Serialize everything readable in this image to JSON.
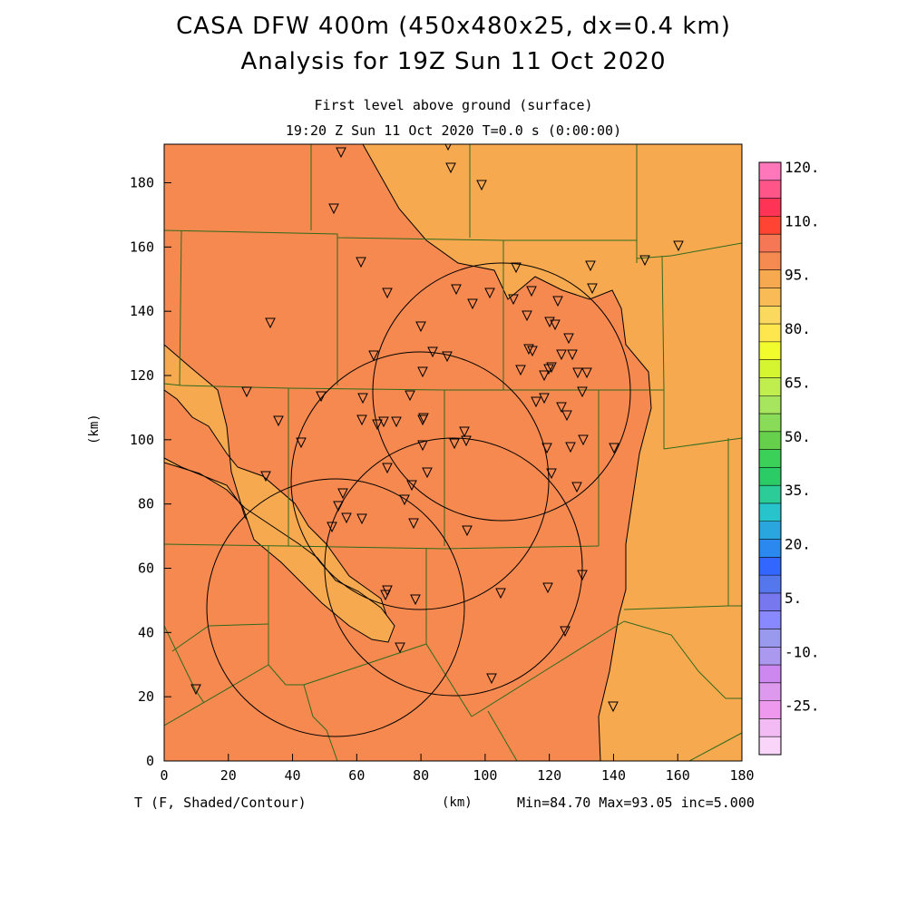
{
  "header": {
    "title_line1": "CASA DFW 400m (450x480x25, dx=0.4 km)",
    "title_line2": "Analysis for 19Z Sun 11 Oct 2020",
    "subtitle_level": "First level above ground (surface)",
    "subtitle_time": "19:20 Z Sun 11 Oct 2020    T=0.0 s (0:00:00)"
  },
  "footer": {
    "field_label": "T (F, Shaded/Contour)",
    "axis_unit": "(km)",
    "stats": "Min=84.70 Max=93.05 inc=5.000"
  },
  "axes": {
    "x_unit": "(km)",
    "y_unit": "(km)",
    "x_range": [
      0,
      180
    ],
    "y_range": [
      0,
      192
    ],
    "x_ticks": [
      "0",
      "20",
      "40",
      "60",
      "80",
      "100",
      "120",
      "140",
      "160",
      "180"
    ],
    "y_ticks": [
      "0",
      "20",
      "40",
      "60",
      "80",
      "100",
      "120",
      "140",
      "160",
      "180"
    ]
  },
  "colorbar": {
    "labels": [
      "120.",
      "110.",
      "95.",
      "80.",
      "65.",
      "50.",
      "35.",
      "20.",
      "5.",
      "-10.",
      "-25."
    ],
    "colors": [
      "#ff77bb",
      "#ff5588",
      "#ff3355",
      "#ff4433",
      "#f57755",
      "#f58b50",
      "#f7a94f",
      "#f8bb55",
      "#fbd95f",
      "#fde64e",
      "#f2fb2b",
      "#d6f531",
      "#bfee4e",
      "#a8e55f",
      "#88dc57",
      "#66d04c",
      "#3bd057",
      "#2bcc66",
      "#2ccc99",
      "#27c4cc",
      "#29a6dd",
      "#2a88ee",
      "#3366ff",
      "#5577ee",
      "#7777ee",
      "#8888ff",
      "#9999ee",
      "#aa99ee",
      "#cc88ee",
      "#dd99ee",
      "#ee99ee",
      "#f3bbf3",
      "#fad5fa"
    ]
  },
  "map": {
    "fill_colors": {
      "warm": "#f5894f",
      "cool": "#f7a94f"
    },
    "station_marker_icon": "inverted-triangle",
    "radar_range_ring_count": 4
  }
}
